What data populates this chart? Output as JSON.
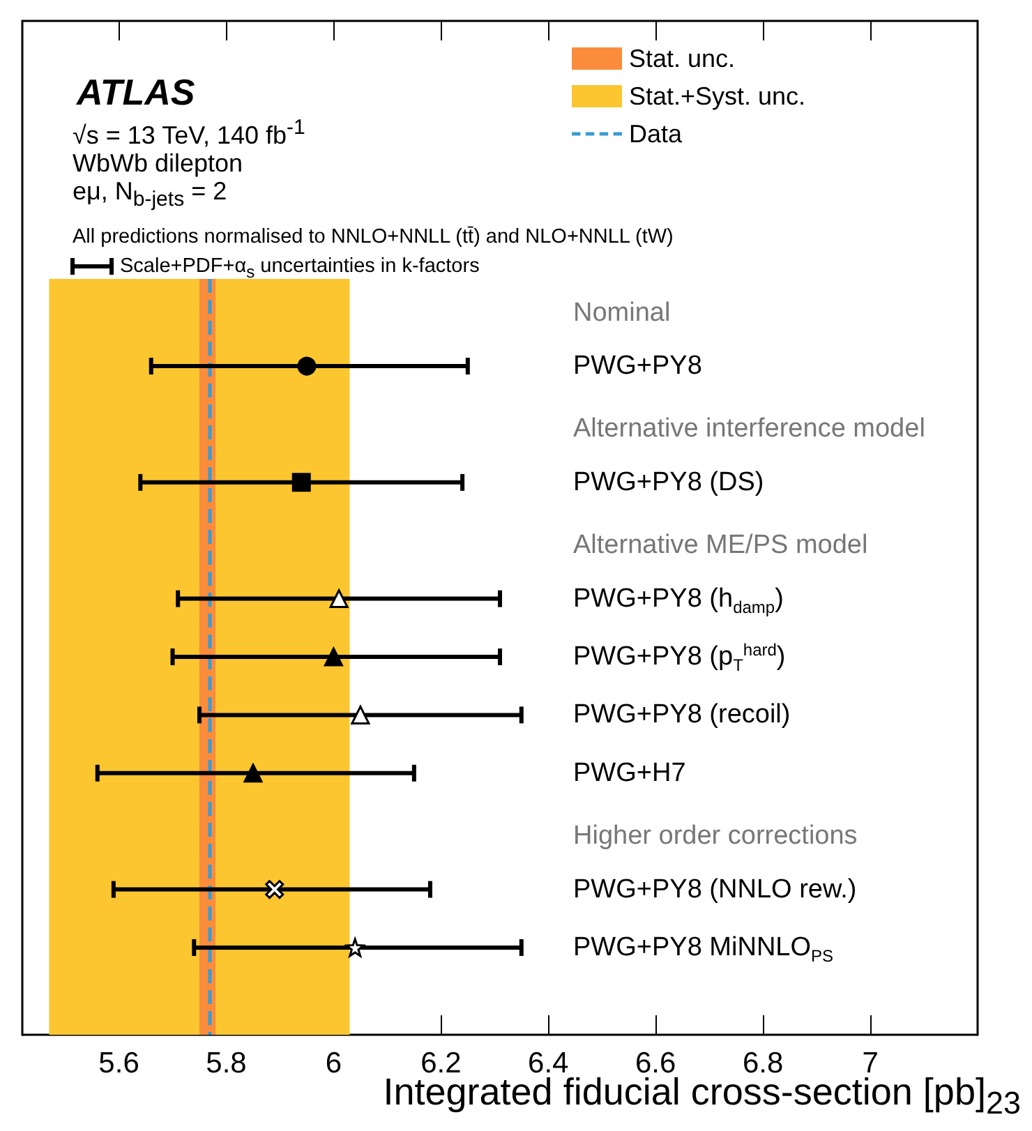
{
  "chart_data": {
    "type": "scatter",
    "orientation": "horizontal",
    "title": "ATLAS",
    "xlabel": "Integrated fiducial cross-section [pb]$_{23}$",
    "categories": [
      null,
      "PWG+PY8",
      null,
      "PWG+PY8 (DS)",
      null,
      "PWG+PY8 (h$_{damp}$)",
      "PWG+PY8 (p$_{T}$$^{hard}$)",
      "PWG+PY8 (recoil)",
      "PWG+H7",
      null,
      "PWG+PY8 (NNLO rew.)",
      "PWG+PY8 MiNNLO$_{PS}$",
      null
    ],
    "series": [
      {
        "color": "#000000",
        "marker": "circle",
        "values": [
          null,
          5.95,
          null,
          null,
          null,
          null,
          null,
          null,
          null,
          null,
          null,
          null,
          null
        ],
        "errors": [
          null,
          [
            5.66,
            6.25
          ],
          null,
          null,
          null,
          null,
          null,
          null,
          null,
          null,
          null,
          null,
          null
        ]
      },
      {
        "color": "#000000",
        "marker": "square",
        "values": [
          null,
          null,
          null,
          5.94,
          null,
          null,
          null,
          null,
          null,
          null,
          null,
          null,
          null
        ],
        "errors": [
          null,
          null,
          null,
          [
            5.64,
            6.24
          ],
          null,
          null,
          null,
          null,
          null,
          null,
          null,
          null,
          null
        ]
      },
      {
        "color": "#ffffff",
        "marker": "triangle",
        "values": [
          null,
          null,
          null,
          null,
          null,
          6.01,
          null,
          null,
          null,
          null,
          null,
          null,
          null
        ],
        "errors": [
          null,
          null,
          null,
          null,
          null,
          [
            5.71,
            6.31
          ],
          null,
          null,
          null,
          null,
          null,
          null,
          null
        ]
      },
      {
        "color": "#000000",
        "marker": "triangle",
        "values": [
          null,
          null,
          null,
          null,
          null,
          null,
          6.0,
          null,
          null,
          null,
          null,
          null,
          null
        ],
        "errors": [
          null,
          null,
          null,
          null,
          null,
          null,
          [
            5.7,
            6.31
          ],
          null,
          null,
          null,
          null,
          null,
          null
        ]
      },
      {
        "color": "#ffffff",
        "marker": "triangle",
        "values": [
          null,
          null,
          null,
          null,
          null,
          null,
          null,
          6.05,
          null,
          null,
          null,
          null,
          null
        ],
        "errors": [
          null,
          null,
          null,
          null,
          null,
          null,
          null,
          [
            5.75,
            6.35
          ],
          null,
          null,
          null,
          null,
          null
        ]
      },
      {
        "color": "#000000",
        "marker": "triangle",
        "values": [
          null,
          null,
          null,
          null,
          null,
          null,
          null,
          null,
          5.85,
          null,
          null,
          null,
          null
        ],
        "errors": [
          null,
          null,
          null,
          null,
          null,
          null,
          null,
          null,
          [
            5.56,
            6.15
          ],
          null,
          null,
          null,
          null
        ]
      },
      {
        "color": "#ffffff",
        "marker": "cross",
        "values": [
          null,
          null,
          null,
          null,
          null,
          null,
          null,
          null,
          null,
          null,
          5.89,
          null,
          null
        ],
        "errors": [
          null,
          null,
          null,
          null,
          null,
          null,
          null,
          null,
          null,
          null,
          [
            5.59,
            6.18
          ],
          null,
          null
        ]
      },
      {
        "color": "#ffffff",
        "marker": "star",
        "values": [
          null,
          null,
          null,
          null,
          null,
          null,
          null,
          null,
          null,
          null,
          null,
          6.04,
          null
        ],
        "errors": [
          null,
          null,
          null,
          null,
          null,
          null,
          null,
          null,
          null,
          null,
          null,
          [
            5.74,
            6.35
          ],
          null
        ]
      }
    ],
    "xlim": [
      5.42,
      7.2
    ],
    "xticks": [
      5.6,
      5.8,
      6,
      6.2,
      6.4,
      6.6,
      6.8,
      7
    ],
    "bands": [
      {
        "axis": "x",
        "from": 5.75,
        "to": 5.78,
        "label": "Stat. unc.",
        "color": "#fb8c3c"
      },
      {
        "axis": "x",
        "from": 5.47,
        "to": 6.03,
        "label": "Stat.+Syst. unc.",
        "color": "#fcc630"
      }
    ],
    "ref_lines": [
      {
        "axis": "x",
        "value": 5.77,
        "label": "Data",
        "color": "#3a9dd1",
        "line_style": "dashed"
      }
    ],
    "legend": "top right",
    "grid": false,
    "annotations": [
      "√s = 13 TeV, 140 fb$^{-1}$",
      "WbWb dilepton",
      "eμ, N$_{b-jets}$ = 2",
      "All predictions normalised to NNLO+NNLL (tt̄) and NLO+NNLL (tW)",
      "Scale+PDF+α$_{s}$ uncertainties in k-factors",
      "Nominal",
      "Alternative interference model",
      "Alternative ME/PS model",
      "Higher order corrections"
    ]
  }
}
